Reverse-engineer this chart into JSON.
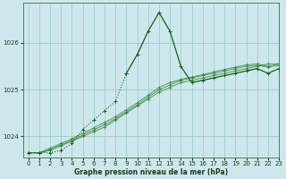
{
  "xlabel": "Graphe pression niveau de la mer (hPa)",
  "xlim": [
    -0.5,
    23
  ],
  "ylim": [
    1023.55,
    1026.85
  ],
  "yticks": [
    1024,
    1025,
    1026
  ],
  "xticks": [
    0,
    1,
    2,
    3,
    4,
    5,
    6,
    7,
    8,
    9,
    10,
    11,
    12,
    13,
    14,
    15,
    16,
    17,
    18,
    19,
    20,
    21,
    22,
    23
  ],
  "background_color": "#cde8ec",
  "grid_color": "#9fcdd4",
  "line_dark": "#1a5c1a",
  "line_med": "#2e7d2e",
  "text_color": "#1a3a1a",
  "spike_series": [
    1023.65,
    1023.65,
    1023.65,
    1023.7,
    1023.85,
    1024.15,
    1024.35,
    1024.55,
    1024.75,
    1025.35,
    1025.75,
    1026.25,
    1026.65,
    1026.25,
    1025.5,
    1025.15,
    1025.2,
    1025.25,
    1025.3,
    1025.35,
    1025.4,
    1025.45,
    1025.35,
    1025.45
  ],
  "gradual_series": [
    [
      1023.65,
      1023.65,
      1023.7,
      1023.8,
      1023.9,
      1024.0,
      1024.1,
      1024.2,
      1024.35,
      1024.5,
      1024.65,
      1024.8,
      1024.95,
      1025.05,
      1025.15,
      1025.2,
      1025.25,
      1025.3,
      1025.35,
      1025.4,
      1025.45,
      1025.5,
      1025.55,
      1025.55
    ],
    [
      1023.65,
      1023.65,
      1023.72,
      1023.82,
      1023.92,
      1024.03,
      1024.14,
      1024.25,
      1024.38,
      1024.53,
      1024.68,
      1024.84,
      1025.0,
      1025.1,
      1025.2,
      1025.25,
      1025.3,
      1025.35,
      1025.4,
      1025.45,
      1025.5,
      1025.52,
      1025.48,
      1025.52
    ],
    [
      1023.65,
      1023.65,
      1023.75,
      1023.85,
      1023.95,
      1024.07,
      1024.18,
      1024.3,
      1024.42,
      1024.57,
      1024.72,
      1024.88,
      1025.05,
      1025.15,
      1025.22,
      1025.27,
      1025.32,
      1025.38,
      1025.43,
      1025.48,
      1025.53,
      1025.55,
      1025.5,
      1025.55
    ]
  ]
}
